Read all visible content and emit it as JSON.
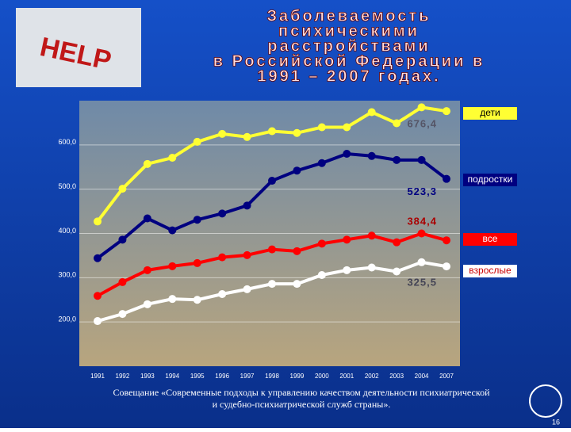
{
  "chart_data": {
    "type": "line",
    "title": [
      "Заболеваемость",
      "психическими",
      "расстройствами",
      "в Российской Федерации в",
      "1991 – 2007 годах."
    ],
    "image_text": "HELP",
    "categories": [
      "1991",
      "1992",
      "1993",
      "1994",
      "1995",
      "1996",
      "1997",
      "1998",
      "1999",
      "2000",
      "2001",
      "2002",
      "2003",
      "2004",
      "2007"
    ],
    "ylim": [
      100,
      700
    ],
    "yticks": [
      {
        "value": 200,
        "label": "200,0"
      },
      {
        "value": 300,
        "label": "300,0"
      },
      {
        "value": 400,
        "label": "400,0"
      },
      {
        "value": 500,
        "label": "500,0"
      },
      {
        "value": 600,
        "label": "600,0"
      }
    ],
    "series": [
      {
        "name": "дети",
        "color": "#ffff33",
        "values": [
          427,
          501,
          557,
          571,
          607,
          625,
          618,
          631,
          627,
          640,
          640,
          674,
          649,
          685,
          676.4
        ],
        "value_labels": [
          null,
          null,
          null,
          null,
          null,
          null,
          null,
          null,
          null,
          null,
          null,
          null,
          null,
          null,
          "676,4"
        ]
      },
      {
        "name": "подростки",
        "color": "#000080",
        "values": [
          344,
          386,
          434,
          407,
          431,
          445,
          463,
          519,
          542,
          559,
          580,
          575,
          566,
          566,
          523.3
        ],
        "value_labels": [
          null,
          null,
          null,
          null,
          null,
          null,
          null,
          null,
          null,
          null,
          null,
          null,
          null,
          null,
          "523,3"
        ]
      },
      {
        "name": "все",
        "color": "#ff0000",
        "values": [
          259,
          290,
          317,
          326,
          333,
          346,
          351,
          364,
          360,
          377,
          386,
          395,
          380,
          400,
          384.4
        ],
        "value_labels": [
          null,
          null,
          null,
          null,
          null,
          null,
          null,
          null,
          null,
          null,
          null,
          null,
          null,
          null,
          "384,4"
        ]
      },
      {
        "name": "взрослые",
        "color": "#ffffff",
        "values": [
          202,
          218,
          240,
          252,
          250,
          263,
          274,
          286,
          286,
          306,
          317,
          323,
          314,
          335,
          325.5
        ],
        "value_labels": [
          null,
          null,
          null,
          null,
          null,
          null,
          null,
          null,
          null,
          null,
          null,
          null,
          null,
          null,
          "325,5"
        ]
      }
    ],
    "footer": "Совещание «Современные подходы к управлению качеством деятельности психиатрической и судебно-психиатрической служб страны».",
    "page_number": "16"
  }
}
